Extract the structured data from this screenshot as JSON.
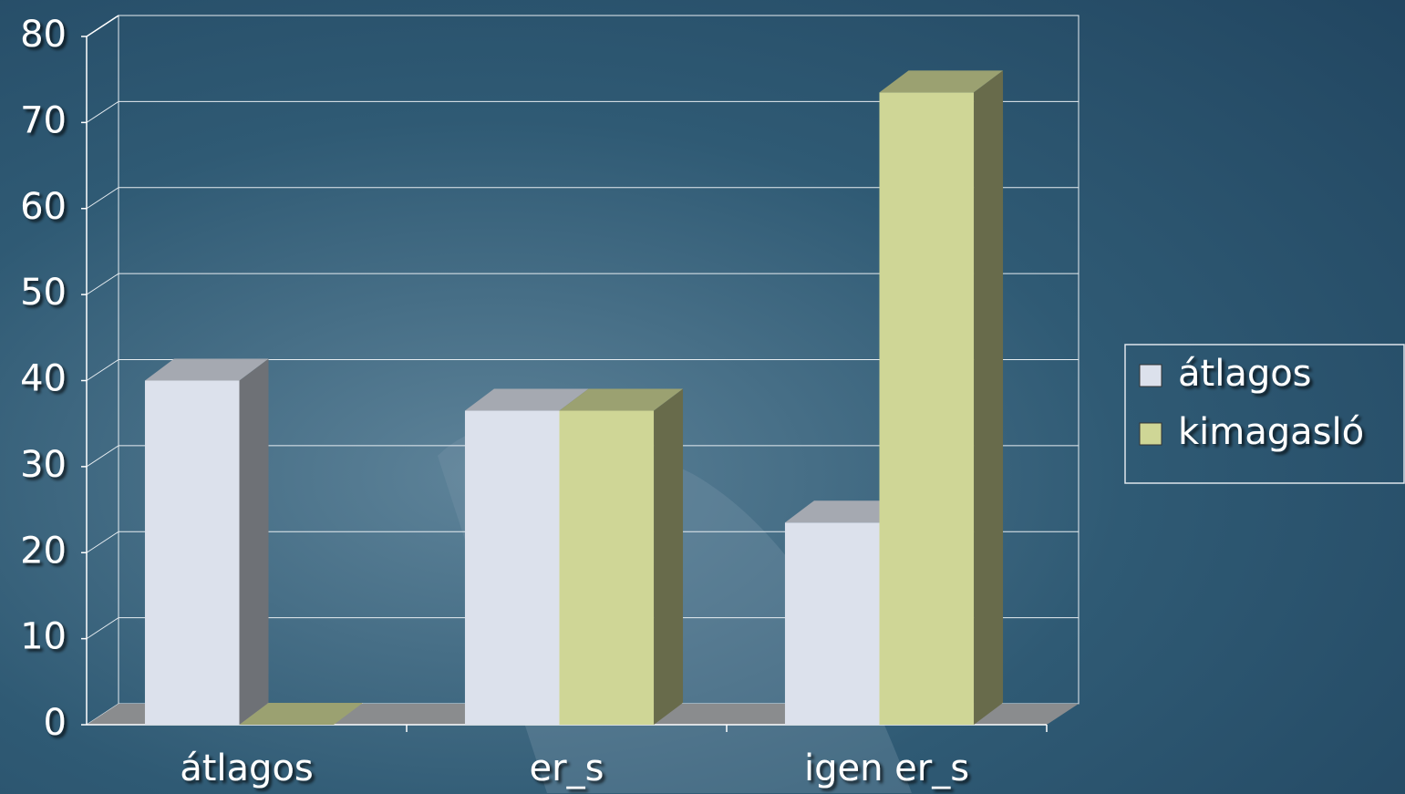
{
  "chart_data": {
    "type": "bar3d",
    "categories": [
      "átlagos",
      "er_s",
      "igen er_s"
    ],
    "series": [
      {
        "name": "átlagos",
        "color": "#dce1ec",
        "values": [
          40,
          36.5,
          23.5
        ]
      },
      {
        "name": "kimagasló",
        "color": "#cfd696",
        "values": [
          0,
          36.5,
          73.5
        ]
      }
    ],
    "ylim": [
      0,
      80
    ],
    "yticks": [
      0,
      10,
      20,
      30,
      40,
      50,
      60,
      70,
      80
    ],
    "grid": true,
    "legend": "right"
  }
}
